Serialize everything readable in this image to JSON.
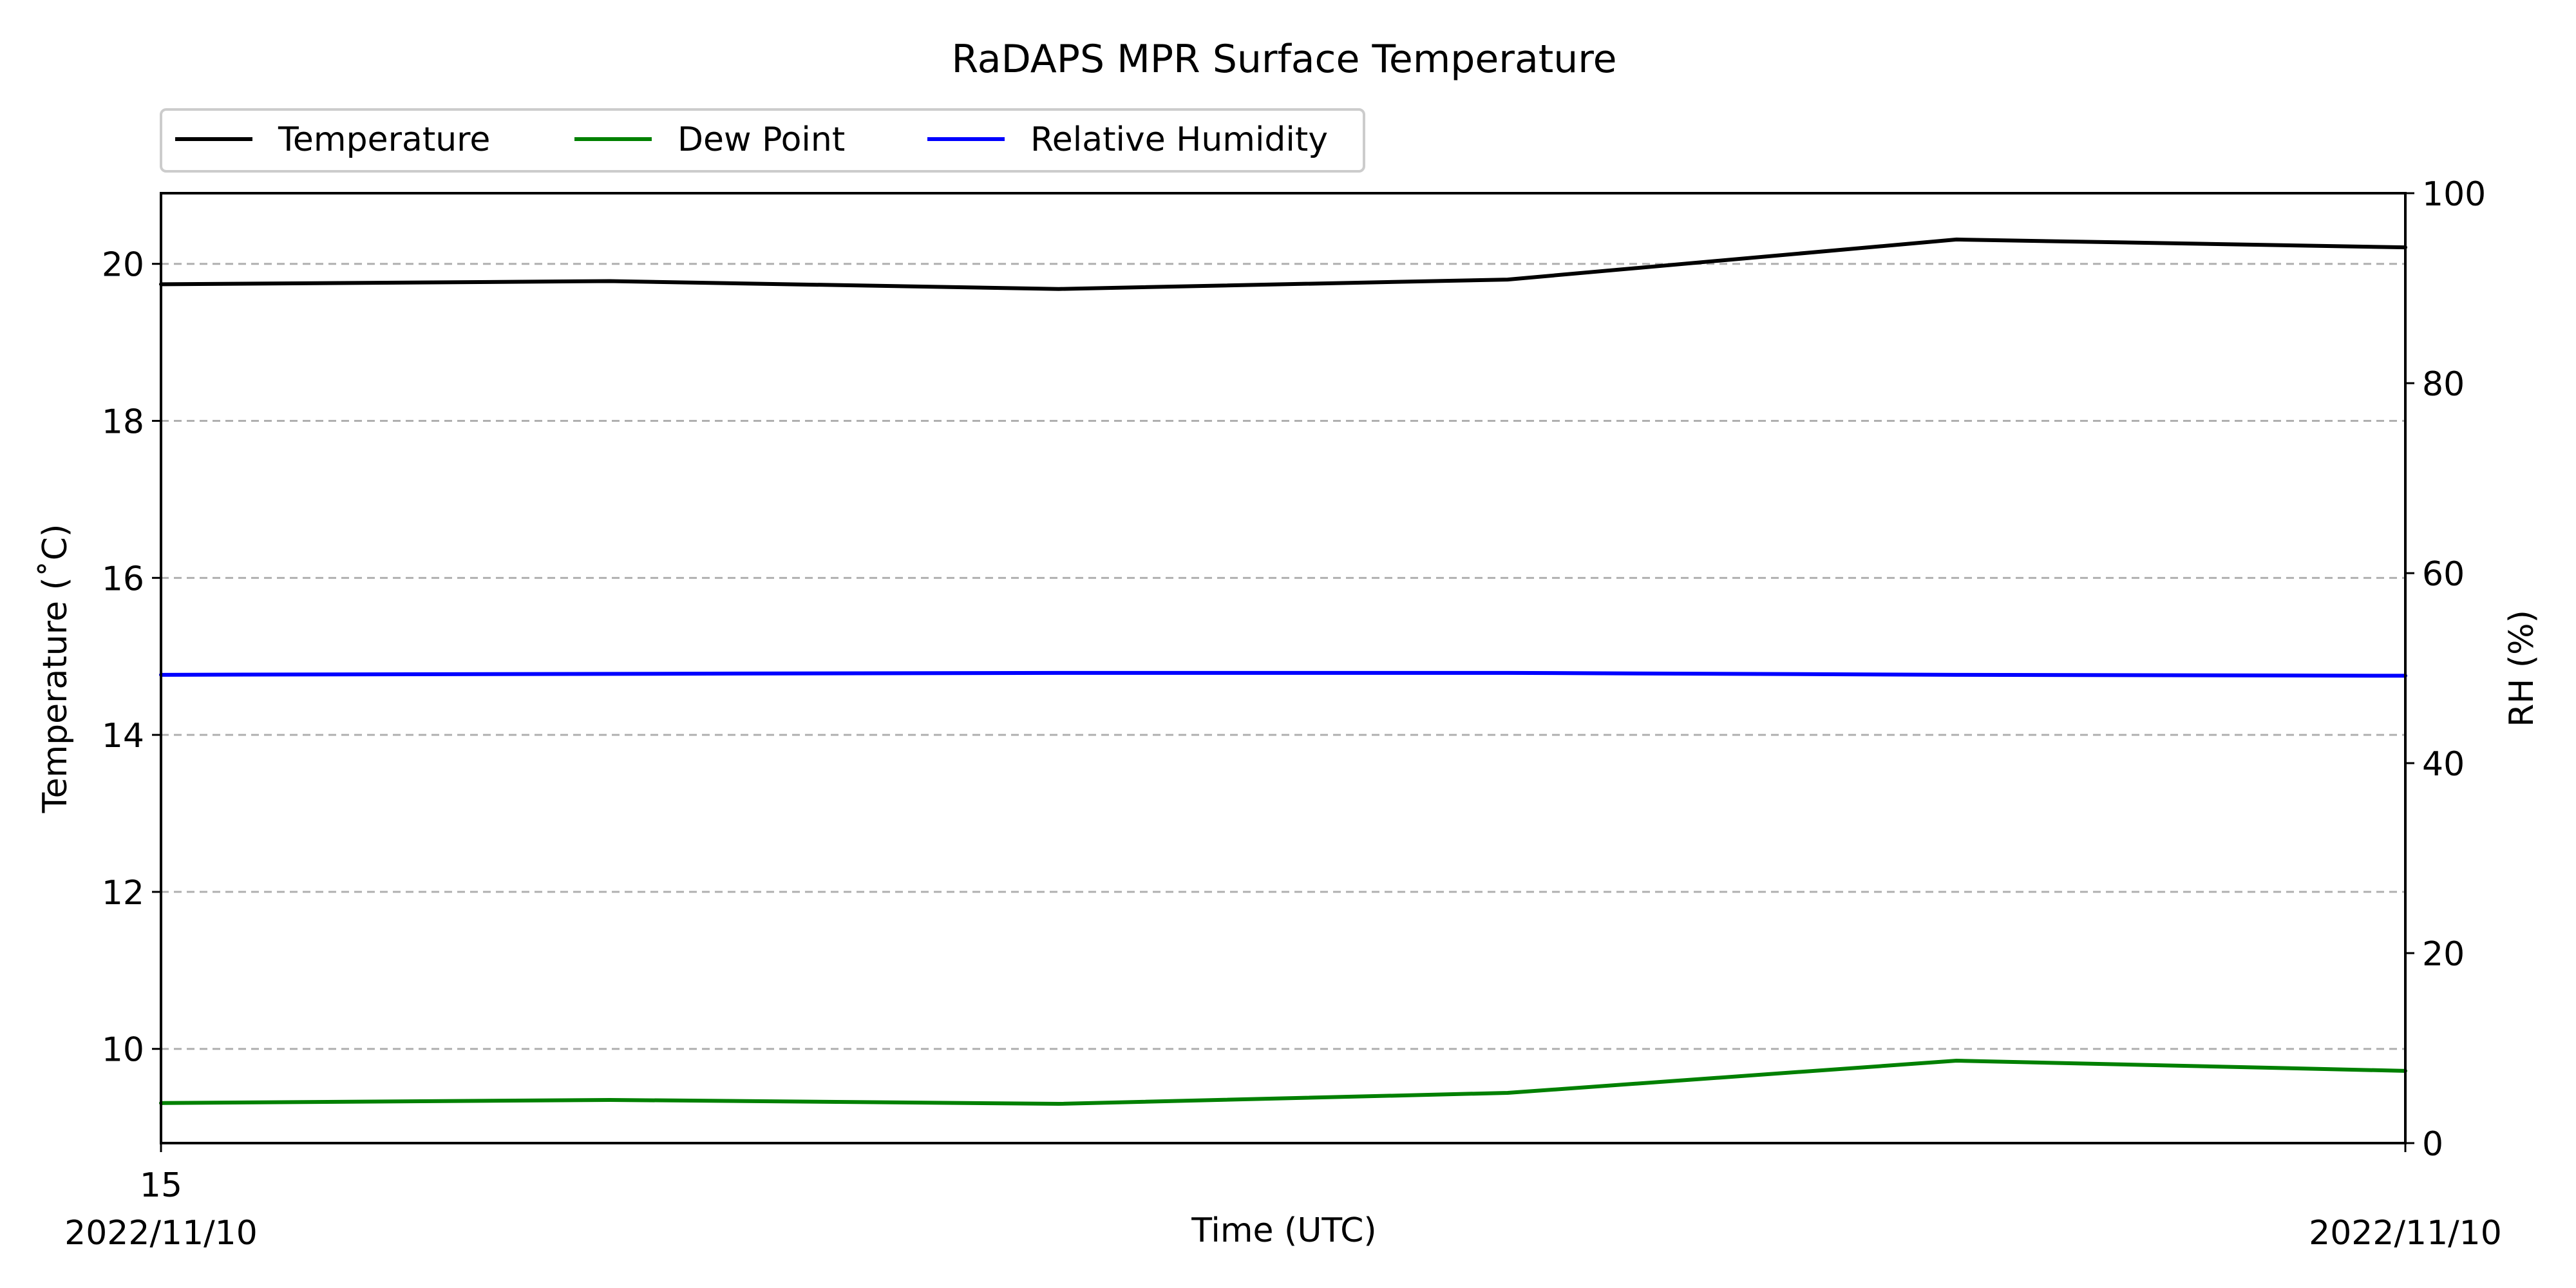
{
  "chart_data": {
    "type": "line",
    "title": "RaDAPS MPR Surface Temperature",
    "xlabel": "Time (UTC)",
    "ylabel": "Temperature ($^\\circ$C)",
    "ylabel_display": "Temperature (˚C)",
    "y2label": "RH (%)",
    "x": [
      0,
      1,
      2,
      3,
      4,
      5
    ],
    "xlim": [
      0,
      5
    ],
    "x_ticks": [
      {
        "x": 0,
        "line1": "15",
        "line2": "2022/11/10"
      },
      {
        "x": 5,
        "line1": "",
        "line2": "2022/11/10"
      }
    ],
    "ylim": [
      8.8,
      20.9
    ],
    "yticks": [
      10,
      12,
      14,
      16,
      18,
      20
    ],
    "y2lim": [
      0,
      100
    ],
    "y2ticks": [
      0,
      20,
      40,
      60,
      80,
      100
    ],
    "grid": {
      "axis": "y",
      "style": "dashed",
      "color": "#b0b0b0"
    },
    "legend": {
      "position": "top-left",
      "columns": 3
    },
    "series": [
      {
        "name": "Temperature",
        "axis": "left",
        "color": "#000000",
        "values": [
          19.74,
          19.78,
          19.68,
          19.8,
          20.31,
          20.21
        ]
      },
      {
        "name": "Dew Point",
        "axis": "left",
        "color": "#008000",
        "values": [
          9.31,
          9.35,
          9.3,
          9.44,
          9.85,
          9.72
        ]
      },
      {
        "name": "Relative Humidity",
        "axis": "right",
        "color": "#0000ff",
        "values": [
          49.3,
          49.4,
          49.5,
          49.5,
          49.3,
          49.2
        ]
      }
    ]
  }
}
